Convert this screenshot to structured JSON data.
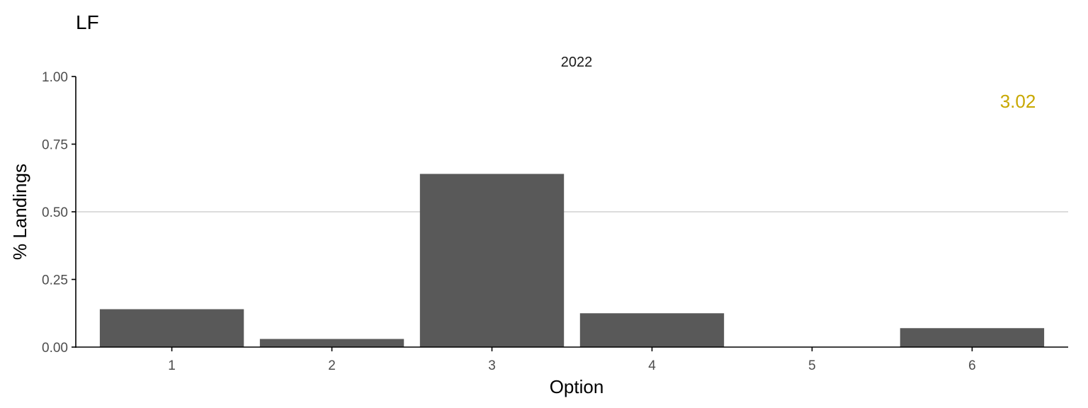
{
  "chart_data": {
    "type": "bar",
    "title": "LF",
    "facet": "2022",
    "xlabel": "Option",
    "ylabel": "% Landings",
    "categories": [
      "1",
      "2",
      "3",
      "4",
      "5",
      "6"
    ],
    "values": [
      0.14,
      0.03,
      0.64,
      0.125,
      0.0,
      0.07
    ],
    "ylim": [
      0,
      1
    ],
    "yticks": [
      "0.00",
      "0.25",
      "0.50",
      "0.75",
      "1.00"
    ],
    "reference_line": 0.5,
    "annotation": "3.02",
    "grid": false,
    "bar_color": "#595959",
    "reference_line_color": "#d0d0d0",
    "annotation_color": "#c8a800"
  }
}
